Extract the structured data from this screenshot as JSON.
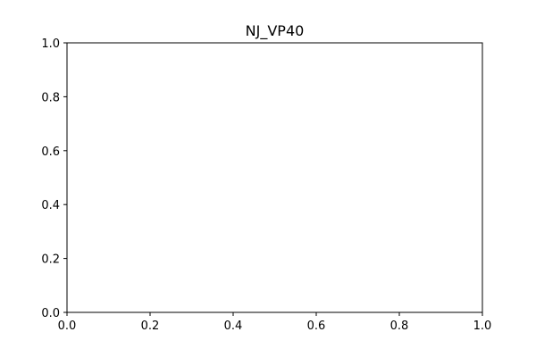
{
  "chart_data": {
    "type": "scatter",
    "title": "NJ_VP40",
    "xlabel": "",
    "ylabel": "",
    "xlim": [
      0.0,
      1.0
    ],
    "ylim": [
      0.0,
      1.0
    ],
    "x_ticks": [
      "0.0",
      "0.2",
      "0.4",
      "0.6",
      "0.8",
      "1.0"
    ],
    "y_ticks": [
      "0.0",
      "0.2",
      "0.4",
      "0.6",
      "0.8",
      "1.0"
    ],
    "grid": false,
    "series": []
  }
}
